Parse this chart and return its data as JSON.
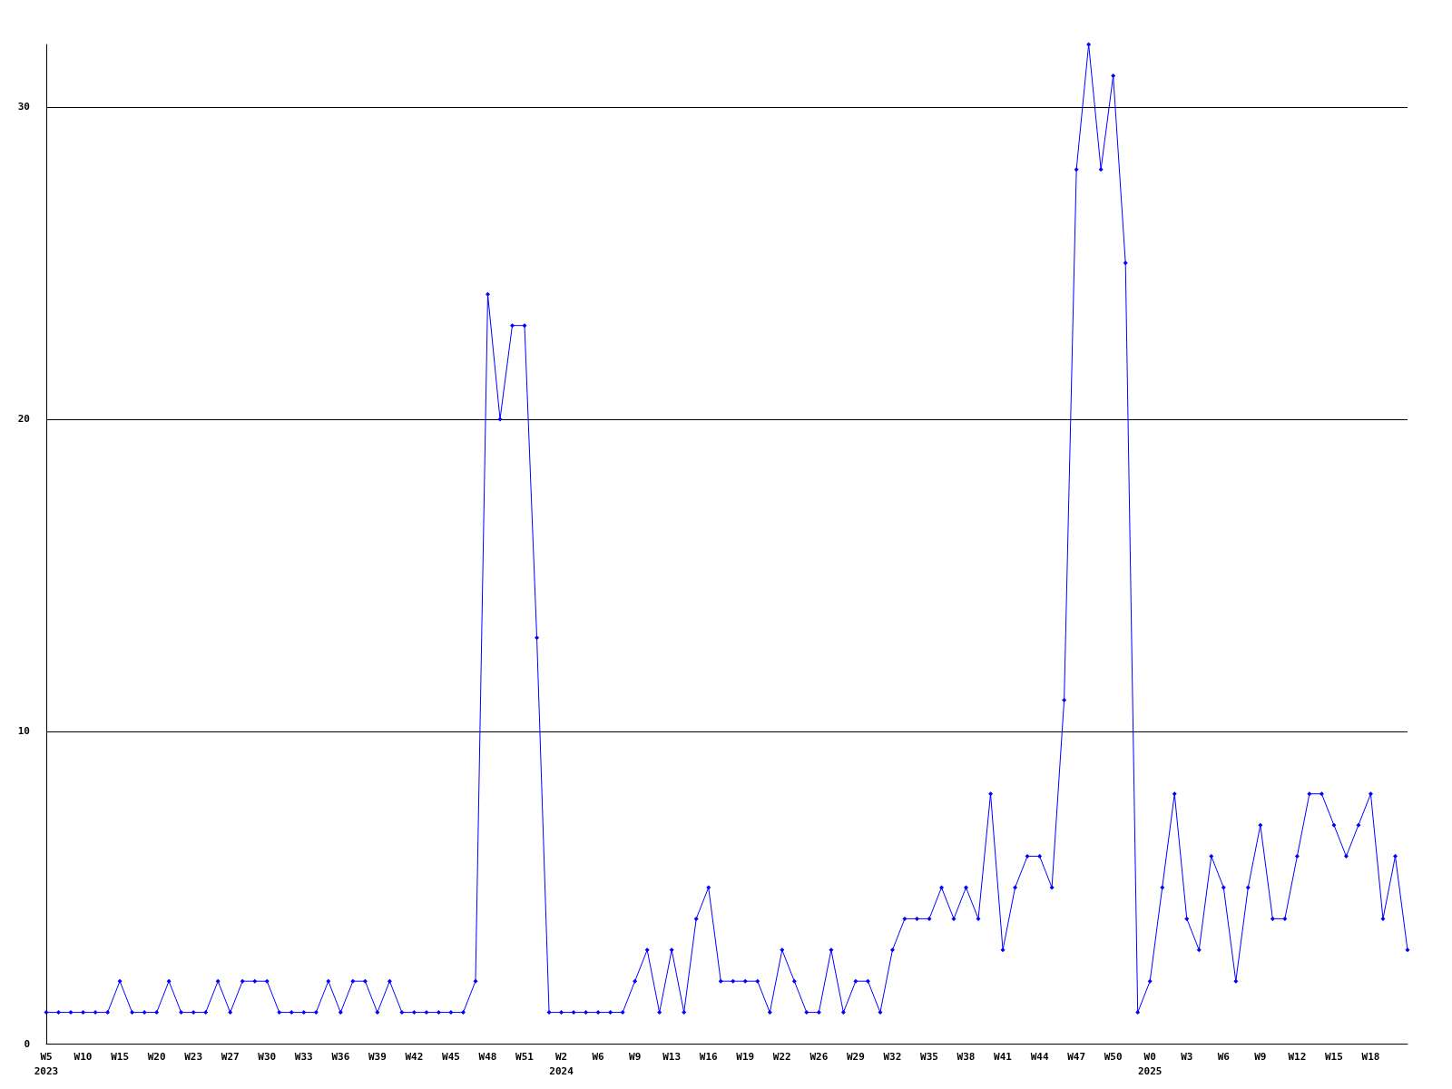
{
  "chart_data": {
    "type": "line",
    "categories": [
      "W5\n2023",
      null,
      null,
      "W10",
      null,
      null,
      "W15",
      null,
      null,
      "W20",
      null,
      null,
      "W23",
      null,
      null,
      "W27",
      null,
      null,
      "W30",
      null,
      null,
      "W33",
      null,
      null,
      "W36",
      null,
      null,
      "W39",
      null,
      null,
      "W42",
      null,
      null,
      "W45",
      null,
      null,
      "W48",
      null,
      null,
      "W51",
      null,
      null,
      "W2\n2024",
      null,
      null,
      "W6",
      null,
      null,
      "W9",
      null,
      null,
      "W13",
      null,
      null,
      "W16",
      null,
      null,
      "W19",
      null,
      null,
      "W22",
      null,
      null,
      "W26",
      null,
      null,
      "W29",
      null,
      null,
      "W32",
      null,
      null,
      "W35",
      null,
      null,
      "W38",
      null,
      null,
      "W41",
      null,
      null,
      "W44",
      null,
      null,
      "W47",
      null,
      null,
      "W50",
      null,
      null,
      "W0\n2025",
      null,
      null,
      "W3",
      null,
      null,
      "W6",
      null,
      null,
      "W9",
      null,
      null,
      "W12",
      null,
      null,
      "W15",
      null,
      null,
      "W18",
      null,
      null,
      null
    ],
    "series": [
      {
        "color": "#0000ff",
        "values": [
          1,
          1,
          1,
          1,
          1,
          1,
          2,
          1,
          1,
          1,
          2,
          1,
          1,
          1,
          2,
          1,
          2,
          2,
          2,
          1,
          1,
          1,
          1,
          2,
          1,
          2,
          2,
          1,
          2,
          1,
          1,
          1,
          1,
          1,
          1,
          2,
          24,
          20,
          23,
          23,
          13,
          1,
          1,
          1,
          1,
          1,
          1,
          1,
          2,
          3,
          1,
          3,
          1,
          4,
          5,
          2,
          2,
          2,
          2,
          1,
          3,
          2,
          1,
          1,
          3,
          1,
          2,
          2,
          1,
          3,
          4,
          4,
          4,
          5,
          4,
          5,
          4,
          8,
          3,
          5,
          6,
          6,
          5,
          11,
          28,
          32,
          28,
          31,
          25,
          1,
          2,
          5,
          8,
          4,
          3,
          6,
          5,
          2,
          5,
          7,
          4,
          4,
          6,
          8,
          8,
          7,
          6,
          7,
          8,
          4,
          6,
          3
        ]
      }
    ],
    "ylim": [
      0,
      32
    ],
    "yticks": [
      0,
      10,
      20,
      30
    ],
    "grid": "y",
    "marker": "diamond",
    "line_style": "solid"
  }
}
